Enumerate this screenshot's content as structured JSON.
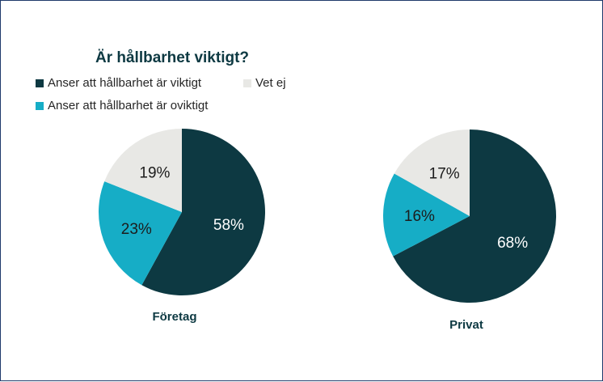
{
  "chart_data": {
    "type": "pie",
    "title": "Är hållbarhet viktigt?",
    "legend": [
      {
        "label": "Anser att hållbarhet är viktigt",
        "color": "#0d3942"
      },
      {
        "label": "Vet ej",
        "color": "#e8e8e5"
      },
      {
        "label": "Anser att hållbarhet är oviktigt",
        "color": "#16adc6"
      }
    ],
    "legend_placement": "top-left",
    "pies": [
      {
        "name": "Företag",
        "slices": [
          {
            "category": "Anser att hållbarhet är viktigt",
            "value": 58,
            "label": "58%"
          },
          {
            "category": "Anser att hållbarhet är oviktigt",
            "value": 23,
            "label": "23%"
          },
          {
            "category": "Vet ej",
            "value": 19,
            "label": "19%"
          }
        ]
      },
      {
        "name": "Privat",
        "slices": [
          {
            "category": "Anser att hållbarhet är viktigt",
            "value": 68,
            "label": "68%"
          },
          {
            "category": "Anser att hållbarhet är oviktigt",
            "value": 16,
            "label": "16%"
          },
          {
            "category": "Vet ej",
            "value": 17,
            "label": "17%"
          }
        ]
      }
    ]
  }
}
